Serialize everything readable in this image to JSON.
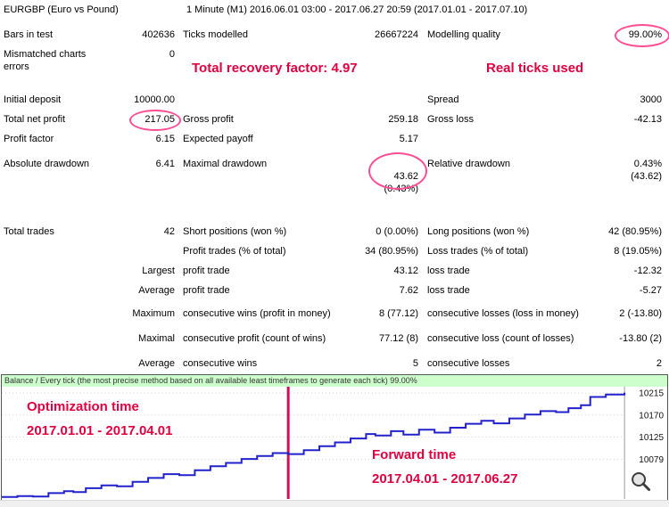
{
  "colors": {
    "annotation": "#e00040",
    "circle": "#ff4d94",
    "balance_line": "#2222cc",
    "split_line": "#cc1155",
    "banner_bg": "#ccffcc"
  },
  "report": {
    "rows": [
      {
        "c1": "EURGBP (Euro vs Pound)",
        "c3": "1 Minute (M1) 2016.06.01 03:00 - 2017.06.27 20:59 (2017.01.01 - 2017.07.10)"
      },
      {
        "c1": "Bars in test",
        "c2": "402636",
        "c3": "Ticks modelled",
        "c4": "26667224",
        "c5": "Modelling quality",
        "c6": "99.00%"
      },
      {
        "c1": "Mismatched charts errors",
        "c2": "0"
      },
      {
        "c1": "Initial deposit",
        "c2": "10000.00",
        "c5": "Spread",
        "c6": "3000"
      },
      {
        "c1": "Total net profit",
        "c2": "217.05",
        "c3": "Gross profit",
        "c4": "259.18",
        "c5": "Gross loss",
        "c6": "-42.13"
      },
      {
        "c1": "Profit factor",
        "c2": "6.15",
        "c3": "Expected payoff",
        "c4": "5.17"
      },
      {
        "c1": "Absolute drawdown",
        "c2": "6.41",
        "c3": "Maximal drawdown",
        "c4": "43.62\n(0.43%)",
        "c5": "Relative drawdown",
        "c6": "0.43%\n(43.62)"
      },
      {
        "c1": "Total trades",
        "c2": "42",
        "c3": "Short positions (won %)",
        "c4": "0 (0.00%)",
        "c5": "Long positions (won %)",
        "c6": "42 (80.95%)"
      },
      {
        "c3": "Profit trades (% of total)",
        "c4": "34 (80.95%)",
        "c5": "Loss trades (% of total)",
        "c6": "8 (19.05%)"
      },
      {
        "c2": "Largest",
        "c3": "profit trade",
        "c4": "43.12",
        "c5": "loss trade",
        "c6": "-12.32"
      },
      {
        "c2": "Average",
        "c3": "profit trade",
        "c4": "7.62",
        "c5": "loss trade",
        "c6": "-5.27"
      },
      {
        "c2": "Maximum",
        "c3": "consecutive wins (profit in money)",
        "c4": "8 (77.12)",
        "c5": "consecutive losses (loss in money)",
        "c6": "2 (-13.80)"
      },
      {
        "c2": "Maximal",
        "c3": "consecutive profit (count of wins)",
        "c4": "77.12 (8)",
        "c5": "consecutive loss (count of losses)",
        "c6": "-13.80 (2)"
      },
      {
        "c2": "Average",
        "c3": "consecutive wins",
        "c4": "5",
        "c5": "consecutive losses",
        "c6": "2"
      }
    ]
  },
  "overlays": {
    "recovery": "Total recovery factor: 4.97",
    "real_ticks": "Real ticks used"
  },
  "chart_data": {
    "type": "line",
    "title": "Balance / Every tick (the most precise method based on all available least timeframes to generate each tick)  99.00%",
    "ylabel_ticks": [
      "10215",
      "10170",
      "10125",
      "10079"
    ],
    "ylim": [
      9998,
      10228
    ],
    "grid": true,
    "legend_position": "none",
    "split_fraction": 0.46,
    "series": [
      {
        "name": "Balance",
        "points": [
          [
            0.0,
            10002
          ],
          [
            0.025,
            10004
          ],
          [
            0.05,
            10003
          ],
          [
            0.075,
            10010
          ],
          [
            0.1,
            10014
          ],
          [
            0.115,
            10012
          ],
          [
            0.135,
            10020
          ],
          [
            0.16,
            10026
          ],
          [
            0.185,
            10024
          ],
          [
            0.21,
            10033
          ],
          [
            0.235,
            10041
          ],
          [
            0.26,
            10049
          ],
          [
            0.285,
            10047
          ],
          [
            0.31,
            10057
          ],
          [
            0.335,
            10065
          ],
          [
            0.36,
            10072
          ],
          [
            0.385,
            10080
          ],
          [
            0.41,
            10086
          ],
          [
            0.435,
            10092
          ],
          [
            0.46,
            10090
          ],
          [
            0.485,
            10098
          ],
          [
            0.51,
            10106
          ],
          [
            0.535,
            10114
          ],
          [
            0.56,
            10122
          ],
          [
            0.585,
            10131
          ],
          [
            0.6,
            10128
          ],
          [
            0.625,
            10137
          ],
          [
            0.645,
            10130
          ],
          [
            0.67,
            10140
          ],
          [
            0.695,
            10134
          ],
          [
            0.72,
            10144
          ],
          [
            0.745,
            10152
          ],
          [
            0.77,
            10158
          ],
          [
            0.79,
            10153
          ],
          [
            0.815,
            10163
          ],
          [
            0.84,
            10171
          ],
          [
            0.865,
            10178
          ],
          [
            0.89,
            10176
          ],
          [
            0.91,
            10184
          ],
          [
            0.93,
            10190
          ],
          [
            0.945,
            10207
          ],
          [
            0.97,
            10212
          ],
          [
            1.0,
            10216
          ]
        ]
      }
    ],
    "annotations": [
      {
        "label": "Optimization time",
        "dates": "2017.01.01 - 2017.04.01"
      },
      {
        "label": "Forward time",
        "dates": "2017.04.01 - 2017.06.27"
      }
    ]
  }
}
